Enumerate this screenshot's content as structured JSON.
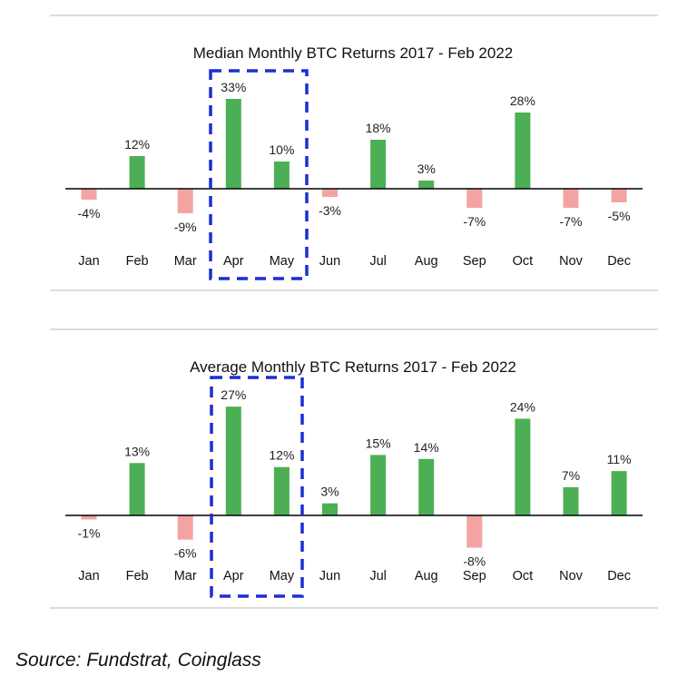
{
  "colors": {
    "positive": "#4caf55",
    "negative": "#f4a3a3",
    "highlight_box": "#1a2fd6",
    "axis": "#000000"
  },
  "chart_data": [
    {
      "type": "bar",
      "title": "Median Monthly BTC Returns 2017 - Feb 2022",
      "categories": [
        "Jan",
        "Feb",
        "Mar",
        "Apr",
        "May",
        "Jun",
        "Jul",
        "Aug",
        "Sep",
        "Oct",
        "Nov",
        "Dec"
      ],
      "values": [
        -4,
        12,
        -9,
        33,
        10,
        -3,
        18,
        3,
        -7,
        28,
        -7,
        -5
      ],
      "labels": [
        "-4%",
        "12%",
        "-9%",
        "33%",
        "10%",
        "-3%",
        "18%",
        "3%",
        "-7%",
        "28%",
        "-7%",
        "-5%"
      ],
      "highlighted": [
        "Apr",
        "May"
      ],
      "grid": false
    },
    {
      "type": "bar",
      "title": "Average Monthly BTC Returns 2017 - Feb 2022",
      "categories": [
        "Jan",
        "Feb",
        "Mar",
        "Apr",
        "May",
        "Jun",
        "Jul",
        "Aug",
        "Sep",
        "Oct",
        "Nov",
        "Dec"
      ],
      "values": [
        -1,
        13,
        -6,
        27,
        12,
        3,
        15,
        14,
        -8,
        24,
        7,
        11
      ],
      "labels": [
        "-1%",
        "13%",
        "-6%",
        "27%",
        "12%",
        "3%",
        "15%",
        "14%",
        "-8%",
        "24%",
        "7%",
        "11%"
      ],
      "highlighted": [
        "Apr",
        "May"
      ],
      "grid": false
    }
  ],
  "source": "Source: Fundstrat, Coinglass"
}
